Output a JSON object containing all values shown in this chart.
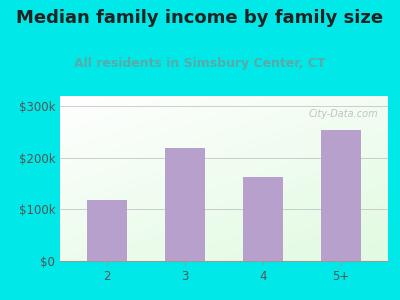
{
  "title": "Median family income by family size",
  "subtitle": "All residents in Simsbury Center, CT",
  "categories": [
    "2",
    "3",
    "4",
    "5+"
  ],
  "values": [
    118000,
    220000,
    163000,
    255000
  ],
  "bar_color": "#b8a0cc",
  "title_color": "#222222",
  "subtitle_color": "#5aaaaa",
  "tick_color": "#555555",
  "outer_bg": "#00e8e8",
  "ylim": [
    0,
    320000
  ],
  "yticks": [
    0,
    100000,
    200000,
    300000
  ],
  "ytick_labels": [
    "$0",
    "$100k",
    "$200k",
    "$300k"
  ],
  "watermark": "City-Data.com",
  "title_fontsize": 13,
  "subtitle_fontsize": 9,
  "tick_fontsize": 8.5
}
